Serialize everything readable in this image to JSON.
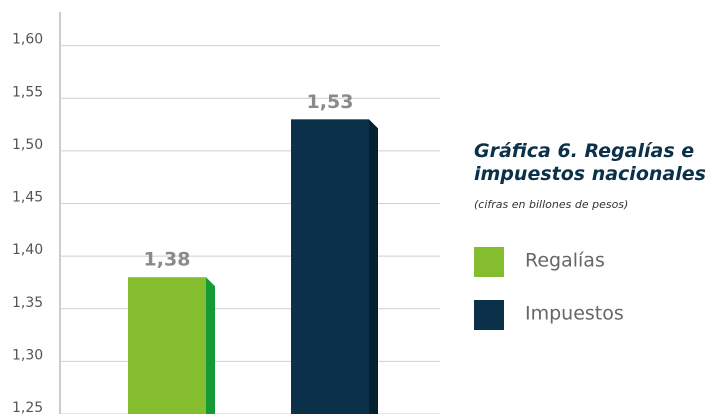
{
  "chart_data": {
    "type": "bar",
    "title": "Gráfica 6.  Regalías e impuestos nacionales",
    "subtitle": "(cifras en billones de pesos)",
    "series": [
      {
        "name": "Regalías",
        "color": "#84bd2e",
        "side_color": "#149a36",
        "values": [
          1.38
        ],
        "value_labels": [
          "1,38"
        ]
      },
      {
        "name": "Impuestos",
        "color": "#0b3049",
        "side_color": "#05202f",
        "values": [
          1.53
        ],
        "value_labels": [
          "1,53"
        ]
      }
    ],
    "ylim": [
      1.25,
      1.632
    ],
    "yticks": [
      {
        "value": 1.25,
        "label": "1,25"
      },
      {
        "value": 1.3,
        "label": "1,30"
      },
      {
        "value": 1.35,
        "label": "1,35"
      },
      {
        "value": 1.4,
        "label": "1,40"
      },
      {
        "value": 1.45,
        "label": "1,45"
      },
      {
        "value": 1.5,
        "label": "1,50"
      },
      {
        "value": 1.55,
        "label": "1,55"
      },
      {
        "value": 1.6,
        "label": "1,60"
      }
    ],
    "grid": true
  }
}
